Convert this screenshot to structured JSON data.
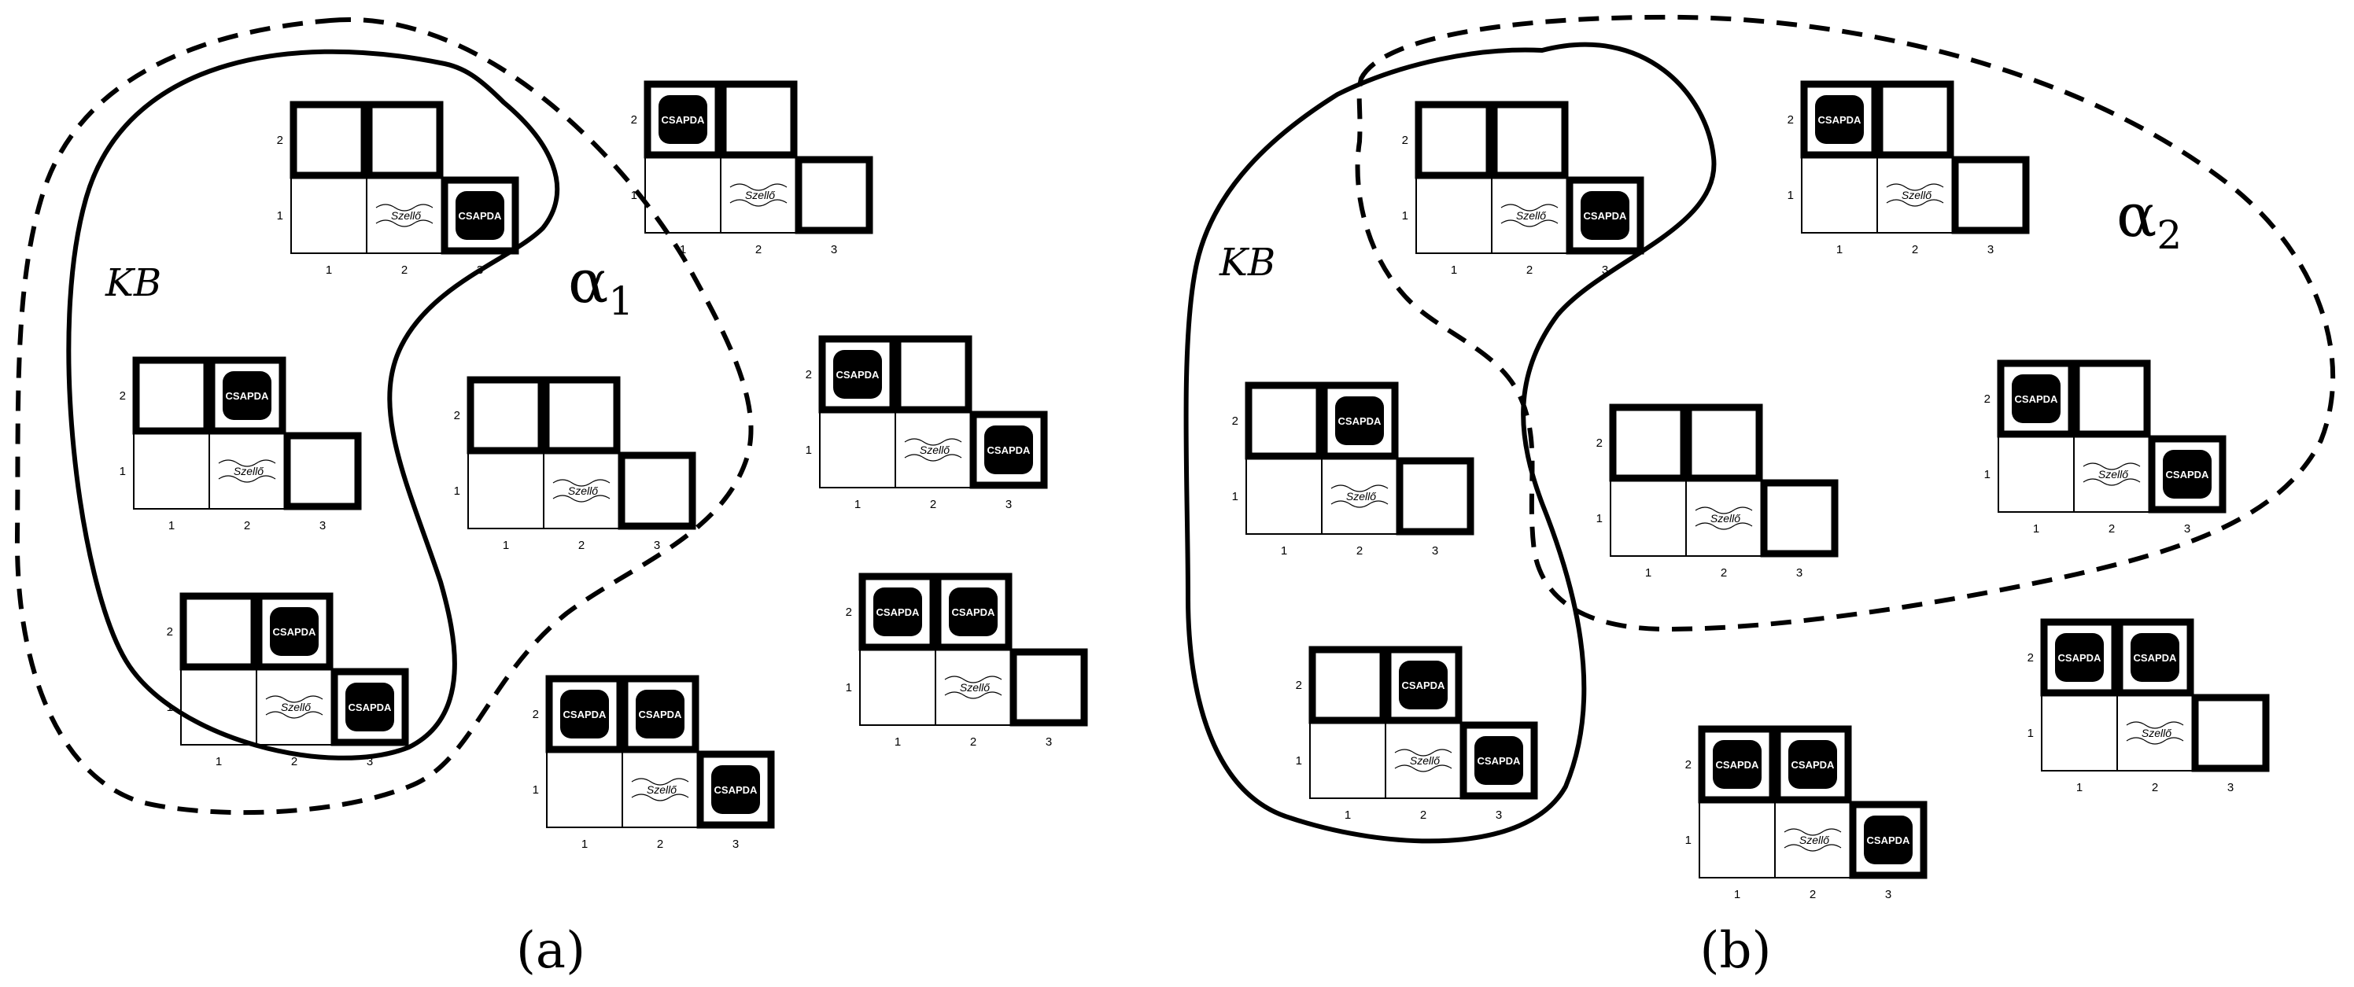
{
  "labels": {
    "trap": "CSAPDA",
    "breeze": "Szellő",
    "x_ticks": [
      "1",
      "2",
      "3"
    ],
    "y_ticks": [
      "1",
      "2"
    ]
  },
  "panels": [
    {
      "caption": "(a)",
      "kb_label": "KB",
      "alpha_symbol": "α",
      "alpha_subscript": "1",
      "models": [
        {
          "name": "pits-at-3-1",
          "pits": [
            "3,1"
          ]
        },
        {
          "name": "pits-at-1-2",
          "pits": [
            "1,2"
          ]
        },
        {
          "name": "pits-at-2-2",
          "pits": [
            "2,2"
          ]
        },
        {
          "name": "no-pits",
          "pits": []
        },
        {
          "name": "pits-at-2-2-and-3-1",
          "pits": [
            "2,2",
            "3,1"
          ]
        },
        {
          "name": "pits-at-1-2-and-3-1",
          "pits": [
            "1,2",
            "3,1"
          ]
        },
        {
          "name": "pits-at-1-2-and-2-2",
          "pits": [
            "1,2",
            "2,2"
          ]
        },
        {
          "name": "pits-at-1-2-2-2-and-3-1",
          "pits": [
            "1,2",
            "2,2",
            "3,1"
          ]
        }
      ]
    },
    {
      "caption": "(b)",
      "kb_label": "KB",
      "alpha_symbol": "α",
      "alpha_subscript": "2",
      "models": [
        {
          "name": "pits-at-3-1",
          "pits": [
            "3,1"
          ]
        },
        {
          "name": "pits-at-1-2",
          "pits": [
            "1,2"
          ]
        },
        {
          "name": "pits-at-2-2",
          "pits": [
            "2,2"
          ]
        },
        {
          "name": "pits-at-2-2-and-3-1",
          "pits": [
            "2,2",
            "3,1"
          ]
        },
        {
          "name": "no-pits",
          "pits": []
        },
        {
          "name": "pits-at-1-2-and-3-1",
          "pits": [
            "1,2",
            "3,1"
          ]
        },
        {
          "name": "pits-at-1-2-and-2-2",
          "pits": [
            "1,2",
            "2,2"
          ]
        },
        {
          "name": "pits-at-1-2-2-2-and-3-1",
          "pits": [
            "1,2",
            "2,2",
            "3,1"
          ]
        }
      ]
    }
  ]
}
